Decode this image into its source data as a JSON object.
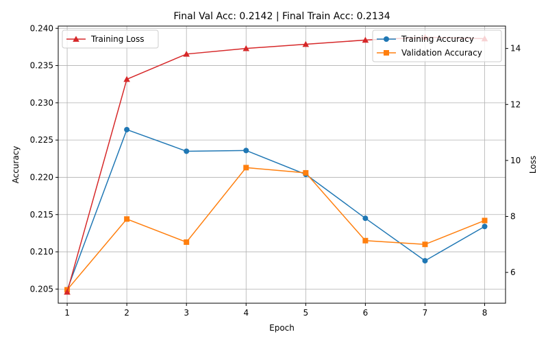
{
  "chart_data": {
    "type": "line",
    "title": "Final Val Acc: 0.2142 | Final Train Acc: 0.2134",
    "xlabel": "Epoch",
    "ylabel_left": "Accuracy",
    "ylabel_right": "Loss",
    "x": [
      1,
      2,
      3,
      4,
      5,
      6,
      7,
      8
    ],
    "xlim": [
      0.85,
      8.35
    ],
    "ylim_left": [
      0.2031,
      0.2403
    ],
    "ylim_right": [
      4.9,
      14.8
    ],
    "yticks_left": [
      "0.205",
      "0.210",
      "0.215",
      "0.220",
      "0.225",
      "0.230",
      "0.235",
      "0.240"
    ],
    "yticks_right": [
      "6",
      "8",
      "10",
      "12",
      "14"
    ],
    "grid": true,
    "series": [
      {
        "name": "Training Accuracy",
        "axis": "left",
        "color": "#1f77b4",
        "marker": "circle",
        "values": [
          0.2049,
          0.2264,
          0.2235,
          0.2236,
          0.2204,
          0.2145,
          0.2088,
          0.2134
        ]
      },
      {
        "name": "Validation Accuracy",
        "axis": "left",
        "color": "#ff7f0e",
        "marker": "square",
        "values": [
          0.2049,
          0.2144,
          0.2113,
          0.2213,
          0.2206,
          0.2115,
          0.211,
          0.2142
        ]
      },
      {
        "name": "Training Loss",
        "axis": "right",
        "color": "#d62728",
        "marker": "triangle",
        "values": [
          5.3,
          12.9,
          13.8,
          14.0,
          14.15,
          14.3,
          14.4,
          14.35
        ]
      }
    ],
    "legend_left": {
      "placement": "upper-left",
      "entries": [
        "Training Loss"
      ]
    },
    "legend_right": {
      "placement": "upper-right",
      "entries": [
        "Training Accuracy",
        "Validation Accuracy"
      ]
    }
  }
}
